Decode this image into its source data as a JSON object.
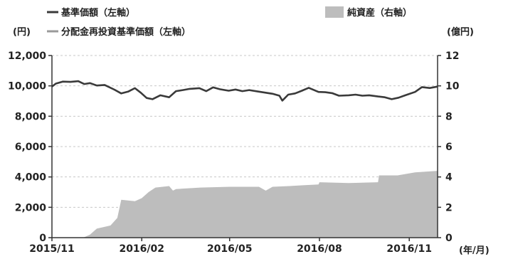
{
  "chart_data": {
    "type": "line+area",
    "legend": [
      {
        "label": "基準価額（左軸）",
        "style": "line",
        "color": "#3a3a3a"
      },
      {
        "label": "分配金再投資基準価額（左軸）",
        "style": "line",
        "color": "#9a9a9a"
      },
      {
        "label": "純資産（右軸）",
        "style": "area",
        "color": "#bdbdbd"
      }
    ],
    "left_axis": {
      "unit": "(円)",
      "range": [
        0,
        12000
      ],
      "ticks": [
        "0",
        "2,000",
        "4,000",
        "6,000",
        "8,000",
        "10,000",
        "12,000"
      ],
      "tick_values": [
        0,
        2000,
        4000,
        6000,
        8000,
        10000,
        12000
      ]
    },
    "right_axis": {
      "unit": "(億円)",
      "range": [
        0,
        12
      ],
      "ticks": [
        "0",
        "2",
        "4",
        "6",
        "8",
        "10",
        "12"
      ],
      "tick_values": [
        0,
        2,
        4,
        6,
        8,
        10,
        12
      ]
    },
    "x_axis": {
      "unit": "(年/月)",
      "range": [
        "2015/11/01",
        "2016/11/30"
      ],
      "ticks": [
        "2015/11",
        "2016/02",
        "2016/05",
        "2016/08",
        "2016/11"
      ],
      "tick_dates": [
        "2015/11/01",
        "2016/02/01",
        "2016/05/01",
        "2016/08/01",
        "2016/11/01"
      ]
    },
    "grid": "horizontal, dashed",
    "series": [
      {
        "name": "基準価額（左軸）",
        "axis": "left",
        "type": "line",
        "color": "#3a3a3a",
        "points": [
          [
            "2015/11/01",
            9950
          ],
          [
            "2015/11/05",
            10150
          ],
          [
            "2015/11/12",
            10280
          ],
          [
            "2015/11/20",
            10260
          ],
          [
            "2015/11/28",
            10310
          ],
          [
            "2015/12/04",
            10120
          ],
          [
            "2015/12/10",
            10180
          ],
          [
            "2015/12/17",
            10020
          ],
          [
            "2015/12/25",
            10060
          ],
          [
            "2016/01/04",
            9750
          ],
          [
            "2016/01/11",
            9500
          ],
          [
            "2016/01/18",
            9620
          ],
          [
            "2016/01/25",
            9850
          ],
          [
            "2016/01/31",
            9550
          ],
          [
            "2016/02/06",
            9200
          ],
          [
            "2016/02/12",
            9120
          ],
          [
            "2016/02/20",
            9380
          ],
          [
            "2016/02/29",
            9250
          ],
          [
            "2016/03/07",
            9650
          ],
          [
            "2016/03/14",
            9720
          ],
          [
            "2016/03/21",
            9800
          ],
          [
            "2016/03/31",
            9850
          ],
          [
            "2016/04/07",
            9650
          ],
          [
            "2016/04/14",
            9900
          ],
          [
            "2016/04/21",
            9780
          ],
          [
            "2016/04/30",
            9680
          ],
          [
            "2016/05/07",
            9760
          ],
          [
            "2016/05/14",
            9650
          ],
          [
            "2016/05/21",
            9720
          ],
          [
            "2016/05/31",
            9620
          ],
          [
            "2016/06/07",
            9550
          ],
          [
            "2016/06/14",
            9480
          ],
          [
            "2016/06/21",
            9350
          ],
          [
            "2016/06/24",
            9030
          ],
          [
            "2016/06/30",
            9420
          ],
          [
            "2016/07/07",
            9500
          ],
          [
            "2016/07/14",
            9680
          ],
          [
            "2016/07/21",
            9870
          ],
          [
            "2016/07/31",
            9600
          ],
          [
            "2016/08/07",
            9580
          ],
          [
            "2016/08/14",
            9520
          ],
          [
            "2016/08/21",
            9350
          ],
          [
            "2016/08/31",
            9380
          ],
          [
            "2016/09/07",
            9420
          ],
          [
            "2016/09/14",
            9350
          ],
          [
            "2016/09/21",
            9380
          ],
          [
            "2016/09/30",
            9300
          ],
          [
            "2016/10/07",
            9250
          ],
          [
            "2016/10/14",
            9120
          ],
          [
            "2016/10/21",
            9220
          ],
          [
            "2016/10/28",
            9380
          ],
          [
            "2016/11/07",
            9600
          ],
          [
            "2016/11/14",
            9920
          ],
          [
            "2016/11/22",
            9860
          ],
          [
            "2016/11/30",
            9950
          ]
        ]
      },
      {
        "name": "純資産（右軸）",
        "axis": "right",
        "type": "area",
        "color": "#bdbdbd",
        "points": [
          [
            "2015/11/01",
            0
          ],
          [
            "2015/12/03",
            0
          ],
          [
            "2015/12/10",
            0.2
          ],
          [
            "2015/12/17",
            0.6
          ],
          [
            "2015/12/24",
            0.7
          ],
          [
            "2015/12/31",
            0.8
          ],
          [
            "2016/01/07",
            1.3
          ],
          [
            "2016/01/11",
            2.5
          ],
          [
            "2016/01/25",
            2.4
          ],
          [
            "2016/02/01",
            2.6
          ],
          [
            "2016/02/08",
            3.0
          ],
          [
            "2016/02/15",
            3.3
          ],
          [
            "2016/02/29",
            3.4
          ],
          [
            "2016/03/04",
            3.1
          ],
          [
            "2016/03/07",
            3.2
          ],
          [
            "2016/04/01",
            3.3
          ],
          [
            "2016/05/01",
            3.35
          ],
          [
            "2016/05/31",
            3.35
          ],
          [
            "2016/06/07",
            3.1
          ],
          [
            "2016/06/14",
            3.35
          ],
          [
            "2016/07/01",
            3.4
          ],
          [
            "2016/07/15",
            3.45
          ],
          [
            "2016/07/31",
            3.5
          ],
          [
            "2016/08/01",
            3.65
          ],
          [
            "2016/08/31",
            3.6
          ],
          [
            "2016/09/30",
            3.65
          ],
          [
            "2016/10/01",
            4.1
          ],
          [
            "2016/10/20",
            4.1
          ],
          [
            "2016/11/07",
            4.3
          ],
          [
            "2016/11/30",
            4.4
          ]
        ]
      }
    ]
  }
}
